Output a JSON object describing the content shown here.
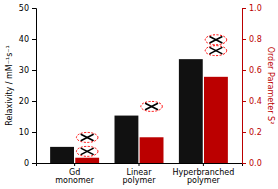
{
  "chart_data": {
    "type": "bar",
    "categories": [
      "Gd\nmonomer",
      "Linear\npolymer",
      "Hyperbranched\npolymer"
    ],
    "series": [
      {
        "color": "#111111",
        "values": [
          5.2,
          15.3,
          33.5
        ]
      },
      {
        "color": "#bb0000",
        "values": [
          1.7,
          8.3,
          27.8
        ]
      },
      {
        "type": "scatter",
        "axis": "y2",
        "marker": "x",
        "color": "red",
        "values": [
          0.165,
          0.365,
          0.795
        ]
      },
      {
        "type": "scatter",
        "axis": "y2",
        "marker": "x",
        "color": "red",
        "values": [
          0.075,
          null,
          0.725
        ]
      }
    ],
    "ylabel": "Relaxivity / mM⁻¹s⁻¹",
    "y2label": "Order Parameter S²",
    "ylim": [
      0,
      50
    ],
    "yticks": [
      0,
      10,
      20,
      30,
      40,
      50
    ],
    "y2lim": [
      0.0,
      1.0
    ],
    "y2ticks": [
      {
        "value": 0.0,
        "label": "0.0"
      },
      0.2,
      0.4,
      0.6,
      0.8,
      {
        "value": 1.0,
        "label": "1.0"
      }
    ]
  }
}
